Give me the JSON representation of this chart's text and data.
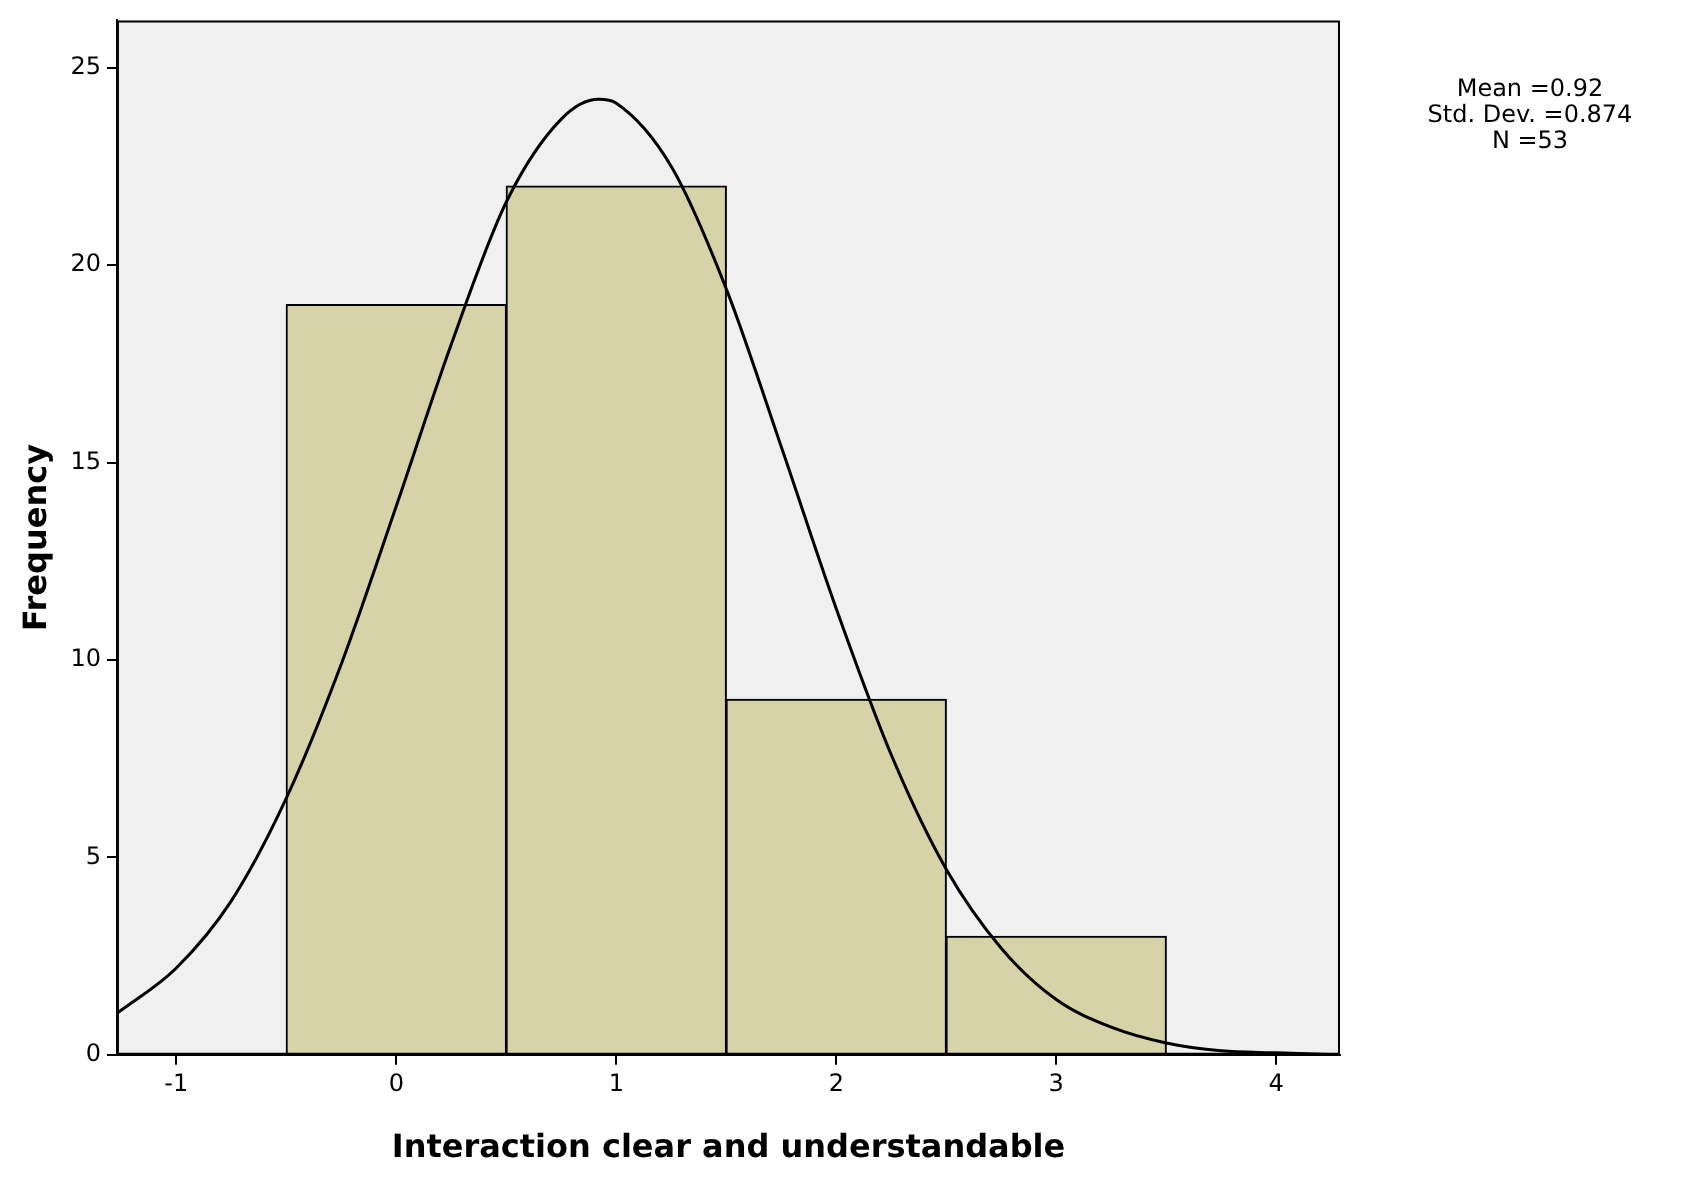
{
  "chart_data": {
    "type": "histogram",
    "xlabel": "Interaction clear and understandable",
    "ylabel": "Frequency",
    "bins": [
      -0.5,
      0.5,
      1.5,
      2.5,
      3.5
    ],
    "values": [
      19,
      22,
      9,
      3
    ],
    "color": "#d6d3a8",
    "series": [
      {
        "type": "line",
        "color": "#000000",
        "x": [
          -1.27,
          -1,
          -0.75,
          -0.5,
          -0.25,
          0,
          0.25,
          0.5,
          0.75,
          0.92,
          1,
          1.25,
          1.5,
          1.75,
          2,
          2.25,
          2.5,
          2.75,
          3,
          3.25,
          3.5,
          3.75,
          4,
          4.29
        ],
        "values": [
          1.05,
          2.2,
          3.9,
          6.5,
          9.9,
          13.9,
          18,
          21.6,
          23.7,
          24.2,
          24.1,
          22.5,
          19.4,
          15.4,
          11.3,
          7.6,
          4.7,
          2.7,
          1.4,
          0.7,
          0.3,
          0.1,
          0.05,
          0
        ]
      }
    ],
    "marker": "none",
    "line_style": "solid",
    "xlim": [
      -1.27,
      4.29
    ],
    "xticks": [
      -1,
      0,
      1,
      2,
      3,
      4
    ],
    "ylim": [
      0,
      26.2
    ],
    "yticks": [
      0,
      5,
      10,
      15,
      20,
      25
    ],
    "grid": false,
    "legend": false,
    "annotations": [
      "Mean =0.92",
      "Std. Dev. =0.874",
      "N =53"
    ]
  }
}
